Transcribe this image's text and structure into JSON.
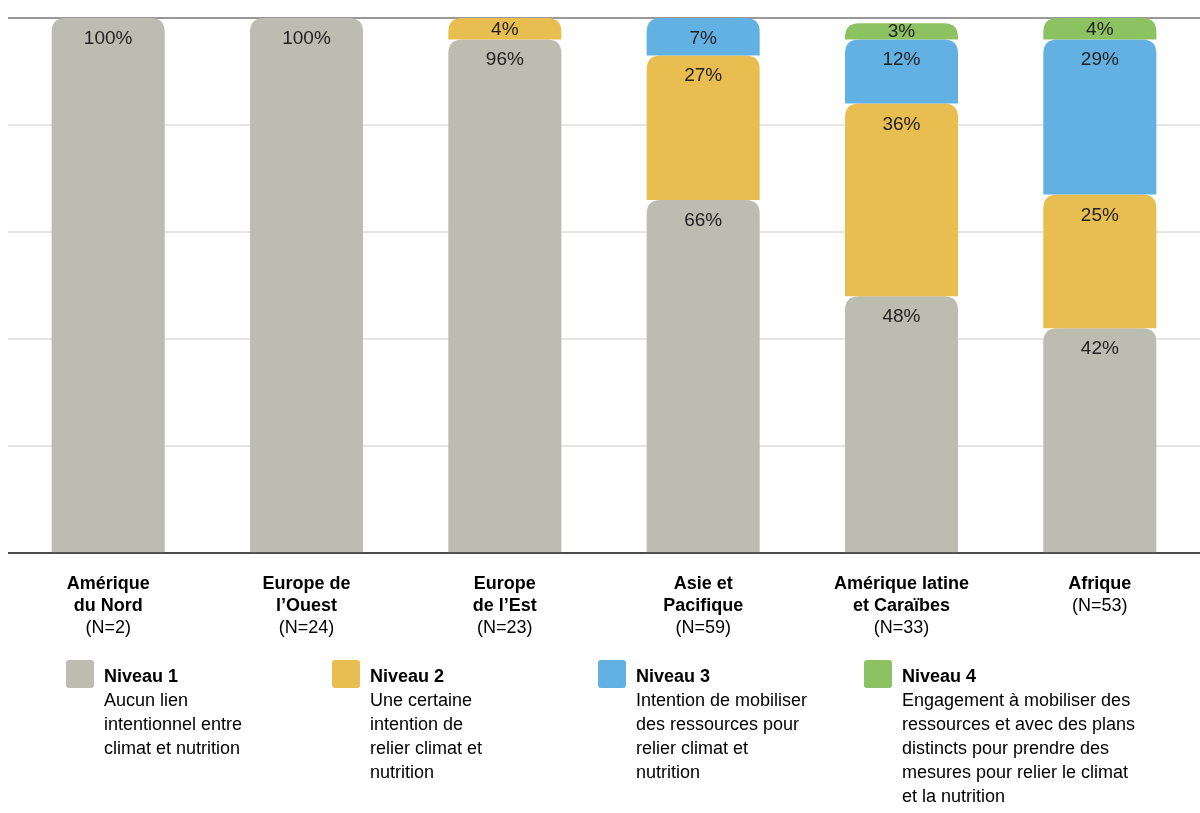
{
  "chart_data": {
    "type": "bar",
    "stacked": true,
    "grid": "y",
    "legend": "bottom",
    "tick_labels": "x",
    "categories": [
      "Amérique\ndu Nord\n(N=2)",
      "Europe de\nl’Ouest\n(N=24)",
      "Europe\nde l’Est\n(N=23)",
      "Asie et\nPacifique\n(N=59)",
      "Amérique latine\net Caraïbes\n(N=33)",
      "Afrique\n(N=53)"
    ],
    "ylim": [
      0,
      100
    ],
    "yticks": [
      {
        "value": 0,
        "label": null
      },
      {
        "value": 20,
        "label": null
      },
      {
        "value": 40,
        "label": null
      },
      {
        "value": 60,
        "label": null
      },
      {
        "value": 80,
        "label": null
      },
      {
        "value": 100,
        "label": null
      }
    ],
    "series": [
      {
        "name": "Niveau 1\nAucun lien\nintentionnel entre\nclimat et nutrition",
        "color": "#bdbcb0",
        "values": [
          100,
          100,
          96,
          66,
          48,
          42
        ],
        "value_labels": [
          "100%",
          "100%",
          "96%",
          "66%",
          "48%",
          "42%"
        ]
      },
      {
        "name": "Niveau 2\nUne certaine\nintention de\nrelier climat et\nnutrition",
        "color": "#e9be50",
        "values": [
          null,
          null,
          4,
          27,
          36,
          25
        ],
        "value_labels": [
          null,
          null,
          "4%",
          "27%",
          "36%",
          "25%"
        ]
      },
      {
        "name": "Niveau 3\nIntention de mobiliser\ndes ressources pour\nrelier climat et\nnutrition",
        "color": "#63b1e3",
        "values": [
          null,
          null,
          null,
          7,
          12,
          29
        ],
        "value_labels": [
          null,
          null,
          null,
          "7%",
          "12%",
          "29%"
        ]
      },
      {
        "name": "Niveau 4\nEngagement à mobiliser des\nressources et avec des plans\ndistincts pour prendre des\nmesures pour relier le climat\net la nutrition",
        "color": "#8dc262",
        "values": [
          null,
          null,
          null,
          null,
          3,
          4
        ],
        "value_labels": [
          null,
          null,
          null,
          null,
          "3%",
          "4%"
        ]
      }
    ]
  }
}
